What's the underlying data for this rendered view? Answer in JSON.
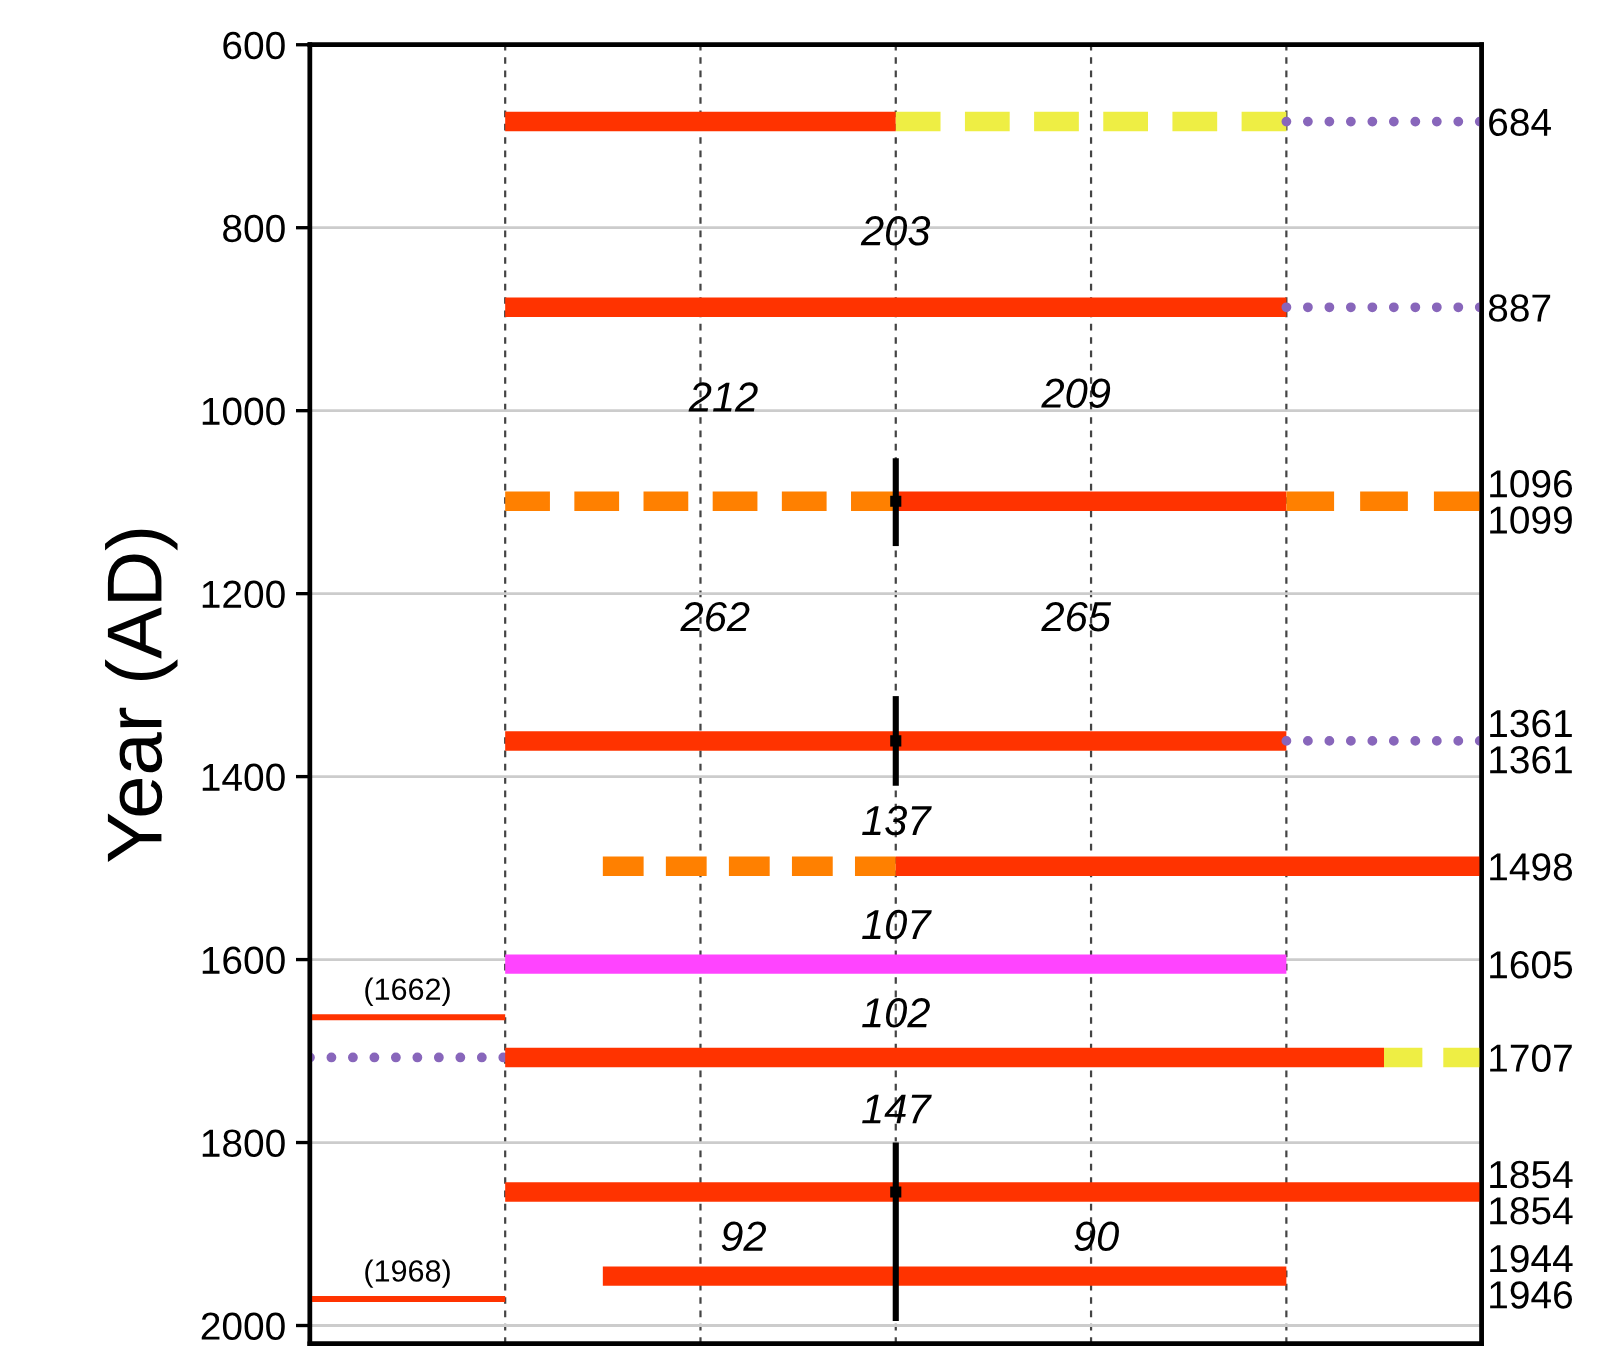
{
  "chart_data": {
    "type": "line",
    "ylabel": "Year (AD)",
    "categories": [
      null,
      null,
      null,
      null,
      null,
      null,
      null,
      null,
      null,
      null,
      null,
      null,
      null
    ],
    "ylim": [
      2020,
      600
    ],
    "yticks": [
      600,
      800,
      1000,
      1200,
      1400,
      1600,
      1800,
      2000
    ],
    "y2lim": [
      2020,
      600
    ],
    "y2ticks": [
      684,
      887,
      {
        "value": 1099,
        "label": "1096\n1099"
      },
      {
        "value": 1361,
        "label": "1361\n1361"
      },
      1498,
      1605,
      1707,
      {
        "value": 1854,
        "label": "1854\n1854"
      },
      {
        "value": 1946,
        "label": "1944\n1946"
      }
    ],
    "grid": true,
    "series": [
      {
        "color": "#ff3300",
        "line_style": "solid",
        "values": [
          null,
          null,
          684,
          684,
          684,
          684,
          684,
          null,
          null,
          null,
          null,
          null,
          null
        ]
      },
      {
        "color": "#eeee44",
        "line_style": "dashed",
        "values": [
          null,
          null,
          null,
          null,
          null,
          null,
          684,
          684,
          684,
          684,
          684,
          null,
          null
        ]
      },
      {
        "color": "#8866bb",
        "line_style": "dotted",
        "values": [
          null,
          null,
          null,
          null,
          null,
          null,
          null,
          null,
          null,
          null,
          684,
          684,
          684
        ]
      },
      {
        "color": "#ff3300",
        "line_style": "solid",
        "values": [
          null,
          null,
          887,
          887,
          887,
          887,
          887,
          887,
          887,
          887,
          887,
          null,
          null
        ]
      },
      {
        "color": "#8866bb",
        "line_style": "dotted",
        "values": [
          null,
          null,
          null,
          null,
          null,
          null,
          null,
          null,
          null,
          null,
          887,
          887,
          887
        ]
      },
      {
        "color": "#ff8000",
        "line_style": "dashed",
        "values": [
          null,
          null,
          1099,
          1099,
          1099,
          1099,
          1099,
          null,
          null,
          null,
          null,
          null,
          null
        ]
      },
      {
        "color": "#ff3300",
        "line_style": "solid",
        "values": [
          null,
          null,
          null,
          null,
          null,
          null,
          1099,
          1099,
          1099,
          1099,
          1099,
          null,
          null
        ]
      },
      {
        "color": "#ff8000",
        "line_style": "dashed",
        "values": [
          null,
          null,
          null,
          null,
          null,
          null,
          null,
          null,
          null,
          null,
          1099,
          1099,
          1099
        ]
      },
      {
        "color": "#ff3300",
        "line_style": "solid",
        "values": [
          null,
          null,
          1361,
          1361,
          1361,
          1361,
          1361,
          1361,
          1361,
          1361,
          1361,
          null,
          null
        ]
      },
      {
        "color": "#8866bb",
        "line_style": "dotted",
        "values": [
          null,
          null,
          null,
          null,
          null,
          null,
          null,
          null,
          null,
          null,
          1361,
          1361,
          1361
        ]
      },
      {
        "color": "#ff8000",
        "line_style": "dashed",
        "values": [
          null,
          null,
          null,
          1498,
          1498,
          1498,
          1498,
          null,
          null,
          null,
          null,
          null,
          null
        ]
      },
      {
        "color": "#ff3300",
        "line_style": "solid",
        "values": [
          null,
          null,
          null,
          null,
          null,
          null,
          1498,
          1498,
          1498,
          1498,
          1498,
          1498,
          1498
        ]
      },
      {
        "color": "#ff44ff",
        "line_style": "solid",
        "values": [
          null,
          null,
          1605,
          1605,
          1605,
          1605,
          1605,
          1605,
          1605,
          1605,
          1605,
          null,
          null
        ]
      },
      {
        "color": "#8866bb",
        "line_style": "dotted",
        "values": [
          1707,
          1707,
          1707,
          null,
          null,
          null,
          null,
          null,
          null,
          null,
          null,
          null,
          null
        ]
      },
      {
        "color": "#ff3300",
        "line_style": "solid",
        "values": [
          null,
          null,
          1707,
          1707,
          1707,
          1707,
          1707,
          1707,
          1707,
          1707,
          1707,
          1707,
          null
        ]
      },
      {
        "color": "#eeee44",
        "line_style": "dashed",
        "values": [
          null,
          null,
          null,
          null,
          null,
          null,
          null,
          null,
          null,
          null,
          null,
          1707,
          1707
        ]
      },
      {
        "color": "#ff3300",
        "line_style": "solid",
        "values": [
          null,
          null,
          1854,
          1854,
          1854,
          1854,
          1854,
          1854,
          1854,
          1854,
          1854,
          1854,
          1854
        ]
      },
      {
        "color": "#ff3300",
        "line_style": "solid",
        "values": [
          null,
          null,
          null,
          1946,
          1946,
          1946,
          1946,
          1946,
          1946,
          1946,
          1946,
          null,
          null
        ]
      },
      {
        "name": "(1662)",
        "color": "#ff3300",
        "line_style": "solid",
        "values": [
          1663,
          1663,
          1663,
          null,
          null,
          null,
          null,
          null,
          null,
          null,
          null,
          null,
          null
        ]
      },
      {
        "name": "(1968)",
        "color": "#ff3300",
        "line_style": "solid",
        "values": [
          1971,
          1971,
          1971,
          null,
          null,
          null,
          null,
          null,
          null,
          null,
          null,
          null,
          null
        ]
      },
      {
        "type": "scatter",
        "marker": "square",
        "color": "#000000",
        "values": [
          null,
          null,
          null,
          null,
          null,
          null,
          1099,
          null,
          null,
          null,
          null,
          null,
          null
        ],
        "errors": [
          null,
          null,
          null,
          null,
          null,
          null,
          [
            1052,
            1148
          ],
          null,
          null,
          null,
          null,
          null,
          null
        ]
      },
      {
        "type": "scatter",
        "marker": "square",
        "color": "#000000",
        "values": [
          null,
          null,
          null,
          null,
          null,
          null,
          1361,
          null,
          null,
          null,
          null,
          null,
          null
        ],
        "errors": [
          null,
          null,
          null,
          null,
          null,
          null,
          [
            1312,
            1410
          ],
          null,
          null,
          null,
          null,
          null,
          null
        ]
      },
      {
        "type": "scatter",
        "marker": "square",
        "color": "#000000",
        "values": [
          null,
          null,
          null,
          null,
          null,
          null,
          1854,
          null,
          null,
          null,
          null,
          null,
          null
        ],
        "errors": [
          null,
          null,
          null,
          null,
          null,
          null,
          [
            1800,
            1995
          ],
          null,
          null,
          null,
          null,
          null,
          null
        ]
      }
    ],
    "annotations": [
      "203",
      "212",
      "209",
      "262",
      "265",
      "137",
      "107",
      "102",
      "147",
      "92",
      "90"
    ]
  }
}
